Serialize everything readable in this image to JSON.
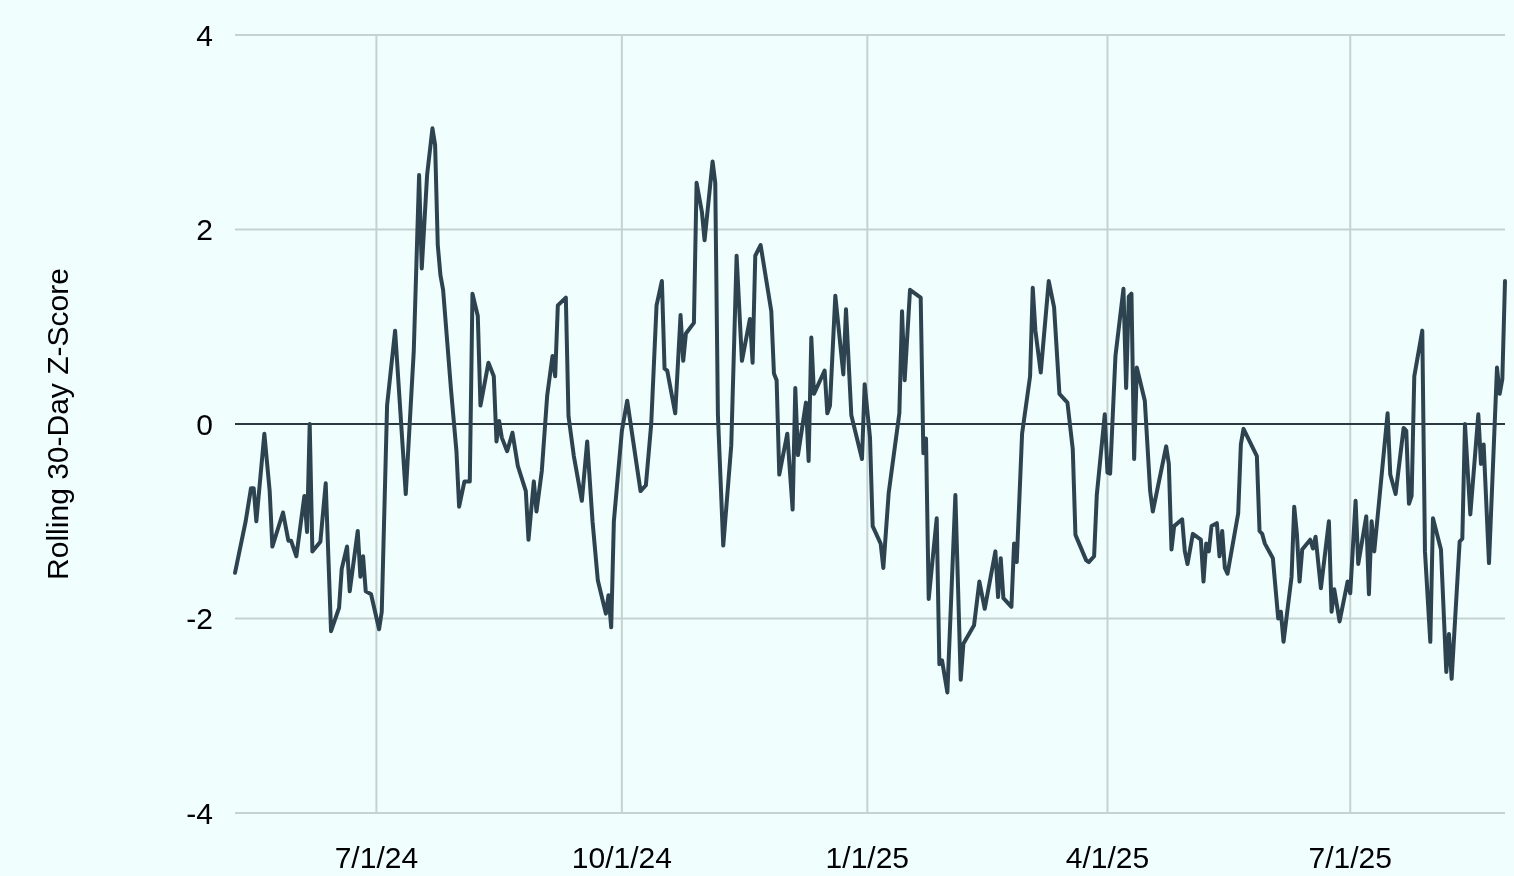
{
  "chart_data": {
    "type": "line",
    "ylabel": "Rolling 30-Day Z-Score",
    "xlim": [
      "2024-05-09",
      "2025-08-28"
    ],
    "ylim": [
      -4,
      4
    ],
    "yticks": [
      -4,
      -2,
      0,
      2,
      4
    ],
    "xticks": [
      {
        "value": "2024-07-01",
        "label": "7/1/24"
      },
      {
        "value": "2024-10-01",
        "label": "10/1/24"
      },
      {
        "value": "2025-01-01",
        "label": "1/1/25"
      },
      {
        "value": "2025-04-01",
        "label": "4/1/25"
      },
      {
        "value": "2025-07-01",
        "label": "7/1/25"
      }
    ],
    "grid": true,
    "marker": "none",
    "line_style": "solid",
    "ref_lines": [
      {
        "axis": "y",
        "value": 0,
        "color": "#2b3a40"
      }
    ],
    "series": [
      {
        "color": "#2d4450",
        "x": [
          "2024-05-09",
          "2024-05-13",
          "2024-05-15",
          "2024-05-16",
          "2024-05-17",
          "2024-05-20",
          "2024-05-22",
          "2024-05-23",
          "2024-05-27",
          "2024-05-29",
          "2024-05-30",
          "2024-06-01",
          "2024-06-04",
          "2024-06-05",
          "2024-06-06",
          "2024-06-07",
          "2024-06-10",
          "2024-06-12",
          "2024-06-14",
          "2024-06-17",
          "2024-06-18",
          "2024-06-20",
          "2024-06-21",
          "2024-06-24",
          "2024-06-25",
          "2024-06-26",
          "2024-06-27",
          "2024-06-29",
          "2024-07-02",
          "2024-07-03",
          "2024-07-05",
          "2024-07-08",
          "2024-07-12",
          "2024-07-15",
          "2024-07-17",
          "2024-07-18",
          "2024-07-20",
          "2024-07-22",
          "2024-07-23",
          "2024-07-24",
          "2024-07-25",
          "2024-07-26",
          "2024-07-29",
          "2024-07-31",
          "2024-08-01",
          "2024-08-03",
          "2024-08-05",
          "2024-08-06",
          "2024-08-08",
          "2024-08-09",
          "2024-08-12",
          "2024-08-14",
          "2024-08-15",
          "2024-08-16",
          "2024-08-17",
          "2024-08-19",
          "2024-08-21",
          "2024-08-23",
          "2024-08-26",
          "2024-08-27",
          "2024-08-29",
          "2024-08-30",
          "2024-09-01",
          "2024-09-03",
          "2024-09-05",
          "2024-09-06",
          "2024-09-07",
          "2024-09-10",
          "2024-09-11",
          "2024-09-13",
          "2024-09-16",
          "2024-09-18",
          "2024-09-20",
          "2024-09-22",
          "2024-09-25",
          "2024-09-26",
          "2024-09-27",
          "2024-09-28",
          "2024-10-01",
          "2024-10-03",
          "2024-10-08",
          "2024-10-10",
          "2024-10-12",
          "2024-10-14",
          "2024-10-16",
          "2024-10-17",
          "2024-10-18",
          "2024-10-21",
          "2024-10-23",
          "2024-10-24",
          "2024-10-25",
          "2024-10-28",
          "2024-10-29",
          "2024-10-31",
          "2024-11-01",
          "2024-11-04",
          "2024-11-05",
          "2024-11-06",
          "2024-11-08",
          "2024-11-11",
          "2024-11-13",
          "2024-11-15",
          "2024-11-18",
          "2024-11-19",
          "2024-11-20",
          "2024-11-22",
          "2024-11-26",
          "2024-11-27",
          "2024-11-28",
          "2024-11-29",
          "2024-12-02",
          "2024-12-04",
          "2024-12-05",
          "2024-12-06",
          "2024-12-09",
          "2024-12-10",
          "2024-12-11",
          "2024-12-12",
          "2024-12-16",
          "2024-12-17",
          "2024-12-18",
          "2024-12-20",
          "2024-12-23",
          "2024-12-24",
          "2024-12-26",
          "2024-12-30",
          "2024-12-31",
          "2025-01-02",
          "2025-01-03",
          "2025-01-06",
          "2025-01-07",
          "2025-01-09",
          "2025-01-13",
          "2025-01-14",
          "2025-01-15",
          "2025-01-17",
          "2025-01-21",
          "2025-01-22",
          "2025-01-23",
          "2025-01-24",
          "2025-01-27",
          "2025-01-28",
          "2025-01-29",
          "2025-01-31",
          "2025-02-03",
          "2025-02-05",
          "2025-02-06",
          "2025-02-10",
          "2025-02-12",
          "2025-02-14",
          "2025-02-18",
          "2025-02-19",
          "2025-02-20",
          "2025-02-21",
          "2025-02-24",
          "2025-02-25",
          "2025-02-26",
          "2025-02-28",
          "2025-03-03",
          "2025-03-04",
          "2025-03-05",
          "2025-03-07",
          "2025-03-10",
          "2025-03-12",
          "2025-03-14",
          "2025-03-17",
          "2025-03-19",
          "2025-03-20",
          "2025-03-24",
          "2025-03-25",
          "2025-03-27",
          "2025-03-28",
          "2025-03-31",
          "2025-04-01",
          "2025-04-02",
          "2025-04-04",
          "2025-04-07",
          "2025-04-08",
          "2025-04-09",
          "2025-04-10",
          "2025-04-11",
          "2025-04-12",
          "2025-04-15",
          "2025-04-17",
          "2025-04-18",
          "2025-04-23",
          "2025-04-24",
          "2025-04-25",
          "2025-04-26",
          "2025-04-29",
          "2025-04-30",
          "2025-05-01",
          "2025-05-03",
          "2025-05-06",
          "2025-05-07",
          "2025-05-08",
          "2025-05-09",
          "2025-05-10",
          "2025-05-12",
          "2025-05-13",
          "2025-05-14",
          "2025-05-15",
          "2025-05-16",
          "2025-05-20",
          "2025-05-21",
          "2025-05-22",
          "2025-05-27",
          "2025-05-28",
          "2025-05-29",
          "2025-05-30",
          "2025-06-02",
          "2025-06-04",
          "2025-06-05",
          "2025-06-06",
          "2025-06-09",
          "2025-06-10",
          "2025-06-11",
          "2025-06-12",
          "2025-06-13",
          "2025-06-16",
          "2025-06-17",
          "2025-06-18",
          "2025-06-20",
          "2025-06-23",
          "2025-06-24",
          "2025-06-25",
          "2025-06-27",
          "2025-06-30",
          "2025-07-01",
          "2025-07-03",
          "2025-07-04",
          "2025-07-07",
          "2025-07-08",
          "2025-07-09",
          "2025-07-10",
          "2025-07-15",
          "2025-07-16",
          "2025-07-18",
          "2025-07-21",
          "2025-07-22",
          "2025-07-23",
          "2025-07-24",
          "2025-07-25",
          "2025-07-28",
          "2025-07-29",
          "2025-07-31",
          "2025-08-01",
          "2025-08-04",
          "2025-08-06",
          "2025-08-07",
          "2025-08-08",
          "2025-08-11",
          "2025-08-12",
          "2025-08-13",
          "2025-08-15",
          "2025-08-18",
          "2025-08-19",
          "2025-08-20",
          "2025-08-22",
          "2025-08-25",
          "2025-08-26",
          "2025-08-27",
          "2025-08-28"
        ],
        "values": [
          -1.53,
          -1.0,
          -0.66,
          -0.66,
          -1.0,
          -0.1,
          -0.69,
          -1.26,
          -0.91,
          -1.2,
          -1.2,
          -1.36,
          -0.74,
          -1.11,
          0.0,
          -1.31,
          -1.21,
          -0.61,
          -2.13,
          -1.89,
          -1.49,
          -1.26,
          -1.72,
          -1.1,
          -1.57,
          -1.36,
          -1.72,
          -1.75,
          -2.11,
          -1.93,
          0.19,
          0.96,
          -0.72,
          0.75,
          2.56,
          1.6,
          2.56,
          3.04,
          2.87,
          1.84,
          1.53,
          1.38,
          0.34,
          -0.28,
          -0.85,
          -0.59,
          -0.59,
          1.34,
          1.11,
          0.19,
          0.63,
          0.49,
          -0.18,
          0.03,
          -0.14,
          -0.28,
          -0.09,
          -0.43,
          -0.69,
          -1.19,
          -0.59,
          -0.9,
          -0.48,
          0.29,
          0.7,
          0.49,
          1.22,
          1.3,
          0.08,
          -0.33,
          -0.79,
          -0.18,
          -1.0,
          -1.61,
          -1.95,
          -1.76,
          -2.09,
          -1.0,
          -0.07,
          0.24,
          -0.69,
          -0.63,
          0.0,
          1.22,
          1.47,
          0.57,
          0.55,
          0.11,
          1.12,
          0.65,
          0.93,
          1.04,
          2.48,
          2.18,
          1.89,
          2.7,
          2.48,
          0.09,
          -1.25,
          -0.22,
          1.73,
          0.65,
          1.08,
          0.63,
          1.73,
          1.84,
          1.16,
          0.52,
          0.45,
          -0.52,
          -0.1,
          -0.88,
          0.37,
          -0.32,
          0.22,
          -0.38,
          0.89,
          0.31,
          0.55,
          0.11,
          0.19,
          1.32,
          0.51,
          1.18,
          0.09,
          -0.36,
          0.41,
          -0.14,
          -1.05,
          -1.23,
          -1.48,
          -0.71,
          0.11,
          1.16,
          0.45,
          1.38,
          1.3,
          -0.3,
          -0.15,
          -1.8,
          -0.97,
          -2.47,
          -2.43,
          -2.76,
          -0.73,
          -2.63,
          -2.26,
          -2.07,
          -1.62,
          -1.9,
          -1.31,
          -1.78,
          -1.38,
          -1.79,
          -1.88,
          -1.23,
          -1.42,
          -0.1,
          0.49,
          1.4,
          0.96,
          0.53,
          1.47,
          1.2,
          0.31,
          0.22,
          -0.26,
          -1.14,
          -1.4,
          -1.42,
          -1.36,
          -0.73,
          0.1,
          -0.5,
          -0.51,
          0.7,
          1.39,
          0.37,
          1.31,
          1.34,
          -0.36,
          0.58,
          0.24,
          -0.69,
          -0.9,
          -0.23,
          -0.41,
          -1.29,
          -1.05,
          -0.98,
          -1.31,
          -1.44,
          -1.13,
          -1.19,
          -1.62,
          -1.23,
          -1.31,
          -1.05,
          -1.02,
          -1.36,
          -1.1,
          -1.48,
          -1.54,
          -0.92,
          -0.21,
          -0.05,
          -0.33,
          -1.1,
          -1.13,
          -1.23,
          -1.38,
          -2.0,
          -1.93,
          -2.24,
          -1.57,
          -0.85,
          -1.13,
          -1.62,
          -1.29,
          -1.19,
          -1.28,
          -1.16,
          -1.69,
          -1.0,
          -1.93,
          -1.7,
          -2.03,
          -1.62,
          -1.74,
          -0.79,
          -1.44,
          -0.95,
          -1.75,
          -1.0,
          -1.31,
          0.11,
          -0.52,
          -0.72,
          -0.04,
          -0.07,
          -0.82,
          -0.74,
          0.49,
          0.96,
          -1.31,
          -2.24,
          -0.97,
          -1.29,
          -2.55,
          -2.16,
          -2.62,
          -1.21,
          -1.18,
          0.0,
          -0.93,
          0.1,
          -0.41,
          -0.21,
          -1.43,
          0.58,
          0.31,
          0.46,
          1.47
        ]
      }
    ]
  }
}
